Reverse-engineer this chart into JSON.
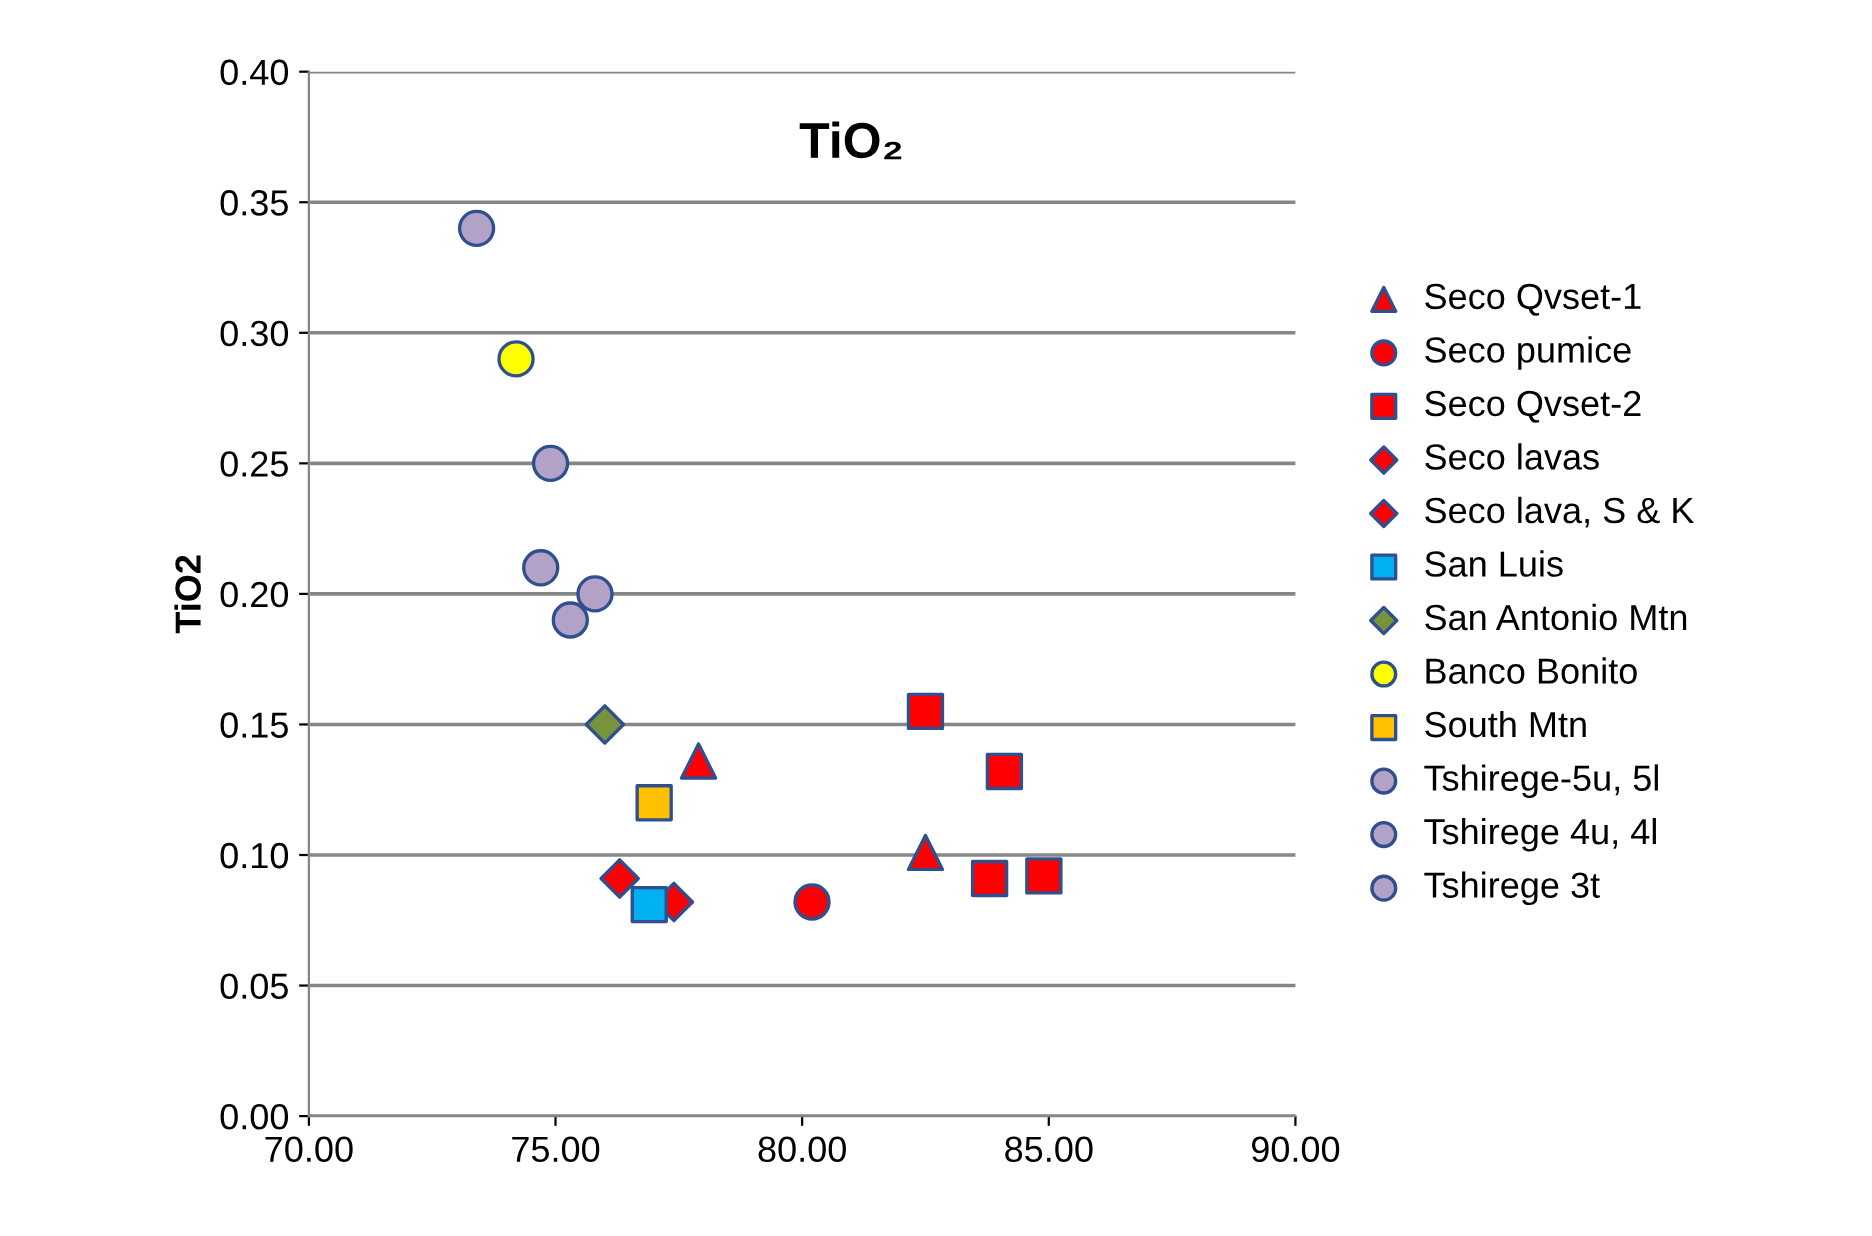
{
  "chart_data": {
    "type": "scatter",
    "ylabel": "TiO2",
    "annotations": [
      "TiO₂"
    ],
    "xlim": [
      70,
      90
    ],
    "xticks": [
      {
        "value": 70,
        "label": "70.00"
      },
      {
        "value": 75,
        "label": "75.00"
      },
      {
        "value": 80,
        "label": "80.00"
      },
      {
        "value": 85,
        "label": "85.00"
      },
      {
        "value": 90,
        "label": "90.00"
      }
    ],
    "ylim": [
      0,
      0.4
    ],
    "yticks": [
      {
        "value": 0,
        "label": "0.00"
      },
      {
        "value": 0.05,
        "label": "0.05"
      },
      {
        "value": 0.1,
        "label": "0.10"
      },
      {
        "value": 0.15,
        "label": "0.15"
      },
      {
        "value": 0.2,
        "label": "0.20"
      },
      {
        "value": 0.25,
        "label": "0.25"
      },
      {
        "value": 0.3,
        "label": "0.30"
      },
      {
        "value": 0.35,
        "label": "0.35"
      },
      {
        "value": 0.4,
        "label": "0.40"
      }
    ],
    "grid": "y",
    "legend": "right",
    "series": [
      {
        "name": "Seco Qvset-1",
        "color": "#ff0000",
        "marker": "triangle",
        "x": [
          77.9,
          82.5
        ],
        "values": [
          0.136,
          0.101
        ]
      },
      {
        "name": "Seco pumice",
        "color": "#ff0000",
        "marker": "circle",
        "x": [
          80.2
        ],
        "values": [
          0.082
        ]
      },
      {
        "name": "Seco Qvset-2",
        "color": "#ff0000",
        "marker": "square",
        "x": [
          82.5,
          84.1,
          83.8,
          84.9
        ],
        "values": [
          0.155,
          0.132,
          0.091,
          0.092
        ]
      },
      {
        "name": "Seco lavas",
        "color": "#ff0000",
        "marker": "diamond",
        "x": [
          77.4
        ],
        "values": [
          0.082
        ]
      },
      {
        "name": "Seco lava, S & K",
        "color": "#ff0000",
        "marker": "diamond",
        "x": [
          76.3
        ],
        "values": [
          0.091
        ]
      },
      {
        "name": "San Luis",
        "color": "#00b0f0",
        "marker": "square",
        "x": [
          76.9
        ],
        "values": [
          0.081
        ]
      },
      {
        "name": "San Antonio Mtn",
        "color": "#77933c",
        "marker": "diamond",
        "x": [
          76.0
        ],
        "values": [
          0.15
        ]
      },
      {
        "name": "Banco Bonito",
        "color": "#ffff00",
        "marker": "circle",
        "x": [
          74.2
        ],
        "values": [
          0.29
        ]
      },
      {
        "name": "South Mtn",
        "color": "#ffc000",
        "marker": "square",
        "x": [
          77.0
        ],
        "values": [
          0.12
        ]
      },
      {
        "name": "Tshirege-5u, 5l",
        "color": "#b3a2c7",
        "marker": "circle",
        "x": [
          74.9,
          75.8
        ],
        "values": [
          0.25,
          0.2
        ]
      },
      {
        "name": "Tshirege 4u, 4l",
        "color": "#b3a2c7",
        "marker": "circle",
        "x": [
          73.4,
          74.7
        ],
        "values": [
          0.34,
          0.21
        ]
      },
      {
        "name": "Tshirege 3t",
        "color": "#b3a2c7",
        "marker": "circle",
        "x": [
          75.3
        ],
        "values": [
          0.19
        ]
      }
    ]
  }
}
